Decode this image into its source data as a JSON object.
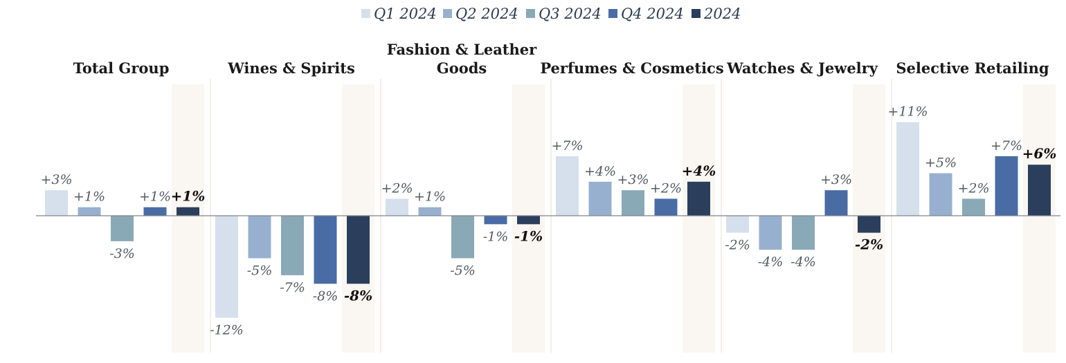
{
  "chart_data": {
    "type": "bar",
    "title": "",
    "xlabel": "",
    "ylabel": "",
    "ylim": [
      -16,
      16
    ],
    "grid": false,
    "legend_position": "top-center",
    "series": [
      {
        "name": "Q1 2024",
        "color": "#d6e0ec"
      },
      {
        "name": "Q2 2024",
        "color": "#98b0d0"
      },
      {
        "name": "Q3 2024",
        "color": "#8aa9b6"
      },
      {
        "name": "Q4 2024",
        "color": "#4a6ca5"
      },
      {
        "name": "2024",
        "color": "#2b3f5c"
      }
    ],
    "highlight_color": "#faf6f1",
    "panels": [
      {
        "title": [
          "Total Group"
        ],
        "values": [
          3,
          1,
          -3,
          1,
          1
        ],
        "labels": [
          "+3%",
          "+1%",
          "-3%",
          "+1%",
          "+1%"
        ]
      },
      {
        "title": [
          "Wines & Spirits"
        ],
        "values": [
          -12,
          -5,
          -7,
          -8,
          -8
        ],
        "labels": [
          "-12%",
          "-5%",
          "-7%",
          "-8%",
          "-8%"
        ]
      },
      {
        "title": [
          "Fashion & Leather",
          "Goods"
        ],
        "values": [
          2,
          1,
          -5,
          -1,
          -1
        ],
        "labels": [
          "+2%",
          "+1%",
          "-5%",
          "-1%",
          "-1%"
        ]
      },
      {
        "title": [
          "Perfumes & Cosmetics"
        ],
        "values": [
          7,
          4,
          3,
          2,
          4
        ],
        "labels": [
          "+7%",
          "+4%",
          "+3%",
          "+2%",
          "+4%"
        ]
      },
      {
        "title": [
          "Watches & Jewelry"
        ],
        "values": [
          -2,
          -4,
          -4,
          3,
          -2
        ],
        "labels": [
          "-2%",
          "-4%",
          "-4%",
          "+3%",
          "-2%"
        ]
      },
      {
        "title": [
          "Selective Retailing"
        ],
        "values": [
          11,
          5,
          2,
          7,
          6
        ],
        "labels": [
          "+11%",
          "+5%",
          "+2%",
          "+7%",
          "+6%"
        ]
      }
    ]
  }
}
